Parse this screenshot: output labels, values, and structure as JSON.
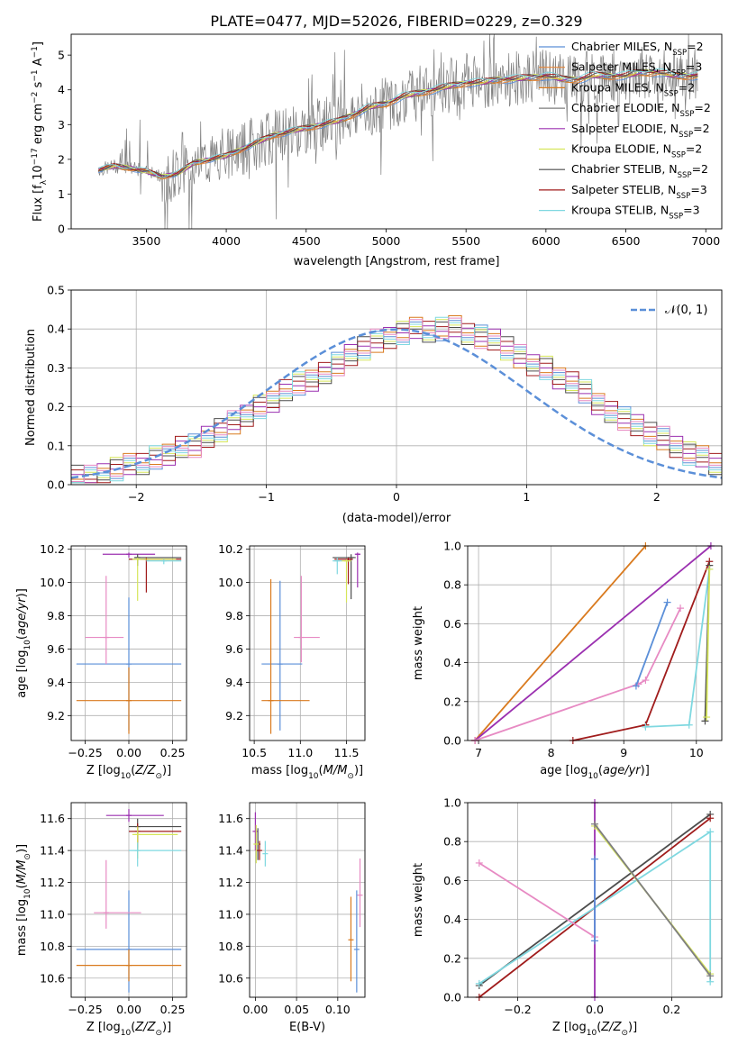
{
  "figure_title": "PLATE=0477, MJD=52026, FIBERID=0229, z=0.329",
  "colors": {
    "Chabrier MILES": "#5b8fd8",
    "Salpeter MILES": "#e8873a",
    "Kroupa MILES": "#d97a1e",
    "Chabrier ELODIE": "#7f7f7f",
    "Salpeter ELODIE": "#9b30b0",
    "Kroupa ELODIE": "#d6e65a",
    "Chabrier STELIB": "#4d4d4d",
    "Salpeter STELIB": "#a01c1c",
    "Kroupa STELIB": "#7fd8e0",
    "pink": "#e78ac3",
    "normal": "#5b8fd8"
  },
  "chart_data": [
    {
      "id": "spectrum",
      "type": "line",
      "title": "PLATE=0477, MJD=52026, FIBERID=0229, z=0.329",
      "xlabel": "wavelength [Angstrom, rest frame]",
      "ylabel": "Flux [f_λ 10^-17 erg cm^-2 s^-1 A^-1]",
      "xlim": [
        3030,
        7100
      ],
      "ylim": [
        0,
        5.6
      ],
      "xticks": [
        3500,
        4000,
        4500,
        5000,
        5500,
        6000,
        6500,
        7000
      ],
      "yticks": [
        0,
        1,
        2,
        3,
        4,
        5
      ],
      "grid": false,
      "legend": "upper right",
      "observed": {
        "x": [
          3200,
          3300,
          3400,
          3500,
          3600,
          3700,
          3800,
          3900,
          4000,
          4100,
          4200,
          4300,
          4400,
          4500,
          4600,
          4700,
          4800,
          4900,
          5000,
          5100,
          5200,
          5300,
          5400,
          5500,
          5600,
          5700,
          5800,
          5900,
          6000,
          6100,
          6200,
          6300,
          6400,
          6500,
          6600,
          6700,
          6800,
          6900
        ],
        "y": [
          1.7,
          1.8,
          1.75,
          1.65,
          1.5,
          1.6,
          1.9,
          2.0,
          2.1,
          2.3,
          2.5,
          2.7,
          2.8,
          2.9,
          3.0,
          3.1,
          3.3,
          3.5,
          3.6,
          3.8,
          3.9,
          4.0,
          4.1,
          4.2,
          4.2,
          4.3,
          4.3,
          4.35,
          4.4,
          4.3,
          4.3,
          4.4,
          4.4,
          4.4,
          4.5,
          4.5,
          4.4,
          4.4
        ]
      },
      "series": [
        {
          "name": "Chabrier MILES, N_SSP=2",
          "label": "Chabrier MILES, N",
          "sub": "SSP",
          "n": "=2"
        },
        {
          "name": "Salpeter MILES, N_SSP=3",
          "label": "Salpeter MILES, N",
          "sub": "SSP",
          "n": "=3"
        },
        {
          "name": "Kroupa MILES, N_SSP=2",
          "label": "Kroupa MILES, N",
          "sub": "SSP",
          "n": "=2"
        },
        {
          "name": "Chabrier ELODIE, N_SSP=2",
          "label": "Chabrier ELODIE, N",
          "sub": "SSP",
          "n": "=2"
        },
        {
          "name": "Salpeter ELODIE, N_SSP=2",
          "label": "Salpeter ELODIE, N",
          "sub": "SSP",
          "n": "=2"
        },
        {
          "name": "Kroupa ELODIE, N_SSP=2",
          "label": "Kroupa ELODIE, N",
          "sub": "SSP",
          "n": "=2"
        },
        {
          "name": "Chabrier STELIB, N_SSP=2",
          "label": "Chabrier STELIB, N",
          "sub": "SSP",
          "n": "=2"
        },
        {
          "name": "Salpeter STELIB, N_SSP=3",
          "label": "Salpeter STELIB, N",
          "sub": "SSP",
          "n": "=3"
        },
        {
          "name": "Kroupa STELIB, N_SSP=3",
          "label": "Kroupa STELIB, N",
          "sub": "SSP",
          "n": "=3"
        }
      ]
    },
    {
      "id": "residuals",
      "type": "histogram",
      "xlabel": "(data-model)/error",
      "ylabel": "Normed distribution",
      "xlim": [
        -2.5,
        2.5
      ],
      "ylim": [
        0,
        0.5
      ],
      "xticks": [
        -2,
        -1,
        0,
        1,
        2
      ],
      "yticks": [
        0,
        0.1,
        0.2,
        0.3,
        0.4,
        0.5
      ],
      "grid": true,
      "legend": "upper right",
      "legend_label": "𝒩(0, 1)",
      "bin_width": 0.1,
      "x_start": -2.5,
      "values": [
        0.02,
        0.02,
        0.03,
        0.04,
        0.05,
        0.05,
        0.07,
        0.08,
        0.1,
        0.1,
        0.12,
        0.14,
        0.16,
        0.18,
        0.2,
        0.21,
        0.24,
        0.26,
        0.27,
        0.29,
        0.31,
        0.33,
        0.35,
        0.37,
        0.38,
        0.39,
        0.4,
        0.39,
        0.4,
        0.41,
        0.39,
        0.38,
        0.37,
        0.35,
        0.33,
        0.31,
        0.3,
        0.27,
        0.26,
        0.24,
        0.21,
        0.19,
        0.17,
        0.15,
        0.13,
        0.12,
        0.1,
        0.08,
        0.07,
        0.05
      ]
    },
    {
      "id": "age-vs-Z",
      "type": "errorbar",
      "xlabel": "Z [log10(Z/Z⊙)]",
      "ylabel": "age [log10(age/yr)]",
      "xlim": [
        -0.33,
        0.33
      ],
      "ylim": [
        9.05,
        10.22
      ],
      "xticks": [
        -0.25,
        0,
        0.25
      ],
      "xticklabels": [
        "−0.25",
        "0.00",
        "0.25"
      ],
      "yticks": [
        9.2,
        9.4,
        9.6,
        9.8,
        10.0,
        10.2
      ],
      "grid": true,
      "points": [
        {
          "color": "Chabrier MILES",
          "x": 0.0,
          "y": 9.51,
          "xerr": [
            0.3,
            0.3
          ],
          "yerr": [
            0.4,
            0.4
          ]
        },
        {
          "color": "Kroupa MILES",
          "x": 0.0,
          "y": 9.29,
          "xerr": [
            0.3,
            0.3
          ],
          "yerr": [
            0.2,
            0.2
          ]
        },
        {
          "color": "pink",
          "x": -0.13,
          "y": 9.67,
          "xerr": [
            0.12,
            0.1
          ],
          "yerr": [
            0.16,
            0.37
          ]
        },
        {
          "color": "Salpeter ELODIE",
          "x": 0.0,
          "y": 10.17,
          "xerr": [
            0.15,
            0.15
          ],
          "yerr": [
            0.02,
            0.01
          ]
        },
        {
          "color": "Chabrier STELIB",
          "x": 0.05,
          "y": 10.15,
          "xerr": [
            0.02,
            0.25
          ],
          "yerr": [
            0.05,
            0.02
          ]
        },
        {
          "color": "Salpeter STELIB",
          "x": 0.1,
          "y": 10.14,
          "xerr": [
            0.1,
            0.2
          ],
          "yerr": [
            0.2,
            0.01
          ]
        },
        {
          "color": "Kroupa ELODIE",
          "x": 0.05,
          "y": 10.14,
          "xerr": [
            0.03,
            0.22
          ],
          "yerr": [
            0.25,
            0.01
          ]
        },
        {
          "color": "Kroupa STELIB",
          "x": 0.2,
          "y": 10.13,
          "xerr": [
            0.1,
            0.1
          ],
          "yerr": [
            0.02,
            0.01
          ]
        }
      ]
    },
    {
      "id": "age-vs-mass",
      "type": "errorbar",
      "xlabel": "mass [log10(M/M⊙)]",
      "xlim": [
        10.45,
        11.7
      ],
      "ylim": [
        9.05,
        10.22
      ],
      "xticks": [
        10.5,
        11.0,
        11.5
      ],
      "xticklabels": [
        "10.5",
        "11.0",
        "11.5"
      ],
      "yticks": [
        9.2,
        9.4,
        9.6,
        9.8,
        10.0,
        10.2
      ],
      "grid": true,
      "points": [
        {
          "color": "Chabrier MILES",
          "x": 10.78,
          "y": 9.51,
          "xerr": [
            0.2,
            0.24
          ],
          "yerr": [
            0.4,
            0.5
          ]
        },
        {
          "color": "Kroupa MILES",
          "x": 10.68,
          "y": 9.29,
          "xerr": [
            0.1,
            0.42
          ],
          "yerr": [
            0.2,
            0.73
          ]
        },
        {
          "color": "pink",
          "x": 11.01,
          "y": 9.67,
          "xerr": [
            0.08,
            0.2
          ],
          "yerr": [
            0.15,
            0.37
          ]
        },
        {
          "color": "Salpeter ELODIE",
          "x": 11.62,
          "y": 10.17,
          "xerr": [
            0.02,
            0.03
          ],
          "yerr": [
            0.2,
            0.01
          ]
        },
        {
          "color": "Chabrier STELIB",
          "x": 11.55,
          "y": 10.15,
          "xerr": [
            0.2,
            0.05
          ],
          "yerr": [
            0.25,
            0.02
          ]
        },
        {
          "color": "Salpeter STELIB",
          "x": 11.52,
          "y": 10.14,
          "xerr": [
            0.15,
            0.05
          ],
          "yerr": [
            0.15,
            0.01
          ]
        },
        {
          "color": "Kroupa ELODIE",
          "x": 11.5,
          "y": 10.13,
          "xerr": [
            0.06,
            0.05
          ],
          "yerr": [
            0.25,
            0.01
          ]
        },
        {
          "color": "Kroupa STELIB",
          "x": 11.4,
          "y": 10.13,
          "xerr": [
            0.05,
            0.05
          ],
          "yerr": [
            0.08,
            0.02
          ]
        }
      ]
    },
    {
      "id": "weight-vs-age",
      "type": "line",
      "xlabel": "age [log10(age/yr)]",
      "ylabel": "mass weight",
      "xlim": [
        6.85,
        10.35
      ],
      "ylim": [
        0,
        1
      ],
      "xticks": [
        7,
        8,
        9,
        10
      ],
      "yticks": [
        0,
        0.2,
        0.4,
        0.6,
        0.8,
        1.0
      ],
      "grid": true,
      "series": [
        {
          "color": "Kroupa MILES",
          "x": [
            6.95,
            9.3
          ],
          "y": [
            0.0,
            1.0
          ]
        },
        {
          "color": "Salpeter ELODIE",
          "x": [
            6.95,
            10.2
          ],
          "y": [
            0.0,
            1.0
          ]
        },
        {
          "color": "pink",
          "x": [
            6.95,
            9.2,
            9.3,
            9.78
          ],
          "y": [
            0.0,
            0.29,
            0.31,
            0.68
          ]
        },
        {
          "color": "Chabrier MILES",
          "x": [
            9.17,
            9.6
          ],
          "y": [
            0.28,
            0.71
          ]
        },
        {
          "color": "Salpeter STELIB",
          "x": [
            8.3,
            9.3,
            10.18
          ],
          "y": [
            0.0,
            0.08,
            0.92
          ]
        },
        {
          "color": "Kroupa STELIB",
          "x": [
            9.3,
            9.9,
            10.18
          ],
          "y": [
            0.07,
            0.08,
            0.88
          ]
        },
        {
          "color": "Chabrier STELIB",
          "x": [
            10.12,
            10.18
          ],
          "y": [
            0.1,
            0.9
          ]
        },
        {
          "color": "Kroupa ELODIE",
          "x": [
            10.14,
            10.18
          ],
          "y": [
            0.12,
            0.88
          ]
        }
      ]
    },
    {
      "id": "mass-vs-Z",
      "type": "errorbar",
      "xlabel": "Z [log10(Z/Z⊙)]",
      "ylabel": "mass [log10(M/M⊙)]",
      "xlim": [
        -0.33,
        0.33
      ],
      "ylim": [
        10.48,
        11.7
      ],
      "xticks": [
        -0.25,
        0,
        0.25
      ],
      "xticklabels": [
        "−0.25",
        "0.00",
        "0.25"
      ],
      "yticks": [
        10.6,
        10.8,
        11.0,
        11.2,
        11.4,
        11.6
      ],
      "grid": true,
      "points": [
        {
          "color": "Chabrier MILES",
          "x": 0.0,
          "y": 10.78,
          "xerr": [
            0.3,
            0.3
          ],
          "yerr": [
            0.27,
            0.37
          ]
        },
        {
          "color": "Kroupa MILES",
          "x": 0.0,
          "y": 10.68,
          "xerr": [
            0.3,
            0.3
          ],
          "yerr": [
            0.1,
            0.1
          ]
        },
        {
          "color": "pink",
          "x": -0.13,
          "y": 11.01,
          "xerr": [
            0.07,
            0.2
          ],
          "yerr": [
            0.1,
            0.33
          ]
        },
        {
          "color": "Salpeter ELODIE",
          "x": 0.0,
          "y": 11.62,
          "xerr": [
            0.13,
            0.2
          ],
          "yerr": [
            0.04,
            0.04
          ]
        },
        {
          "color": "Chabrier STELIB",
          "x": 0.05,
          "y": 11.55,
          "xerr": [
            0.05,
            0.25
          ],
          "yerr": [
            0.15,
            0.05
          ]
        },
        {
          "color": "Salpeter STELIB",
          "x": 0.05,
          "y": 11.52,
          "xerr": [
            0.05,
            0.25
          ],
          "yerr": [
            0.1,
            0.05
          ]
        },
        {
          "color": "Kroupa ELODIE",
          "x": 0.05,
          "y": 11.5,
          "xerr": [
            0.03,
            0.23
          ],
          "yerr": [
            0.15,
            0.05
          ]
        },
        {
          "color": "Kroupa STELIB",
          "x": 0.05,
          "y": 11.4,
          "xerr": [
            0.05,
            0.25
          ],
          "yerr": [
            0.1,
            0.05
          ]
        }
      ]
    },
    {
      "id": "mass-vs-ebv",
      "type": "errorbar",
      "xlabel": "E(B-V)",
      "xlim": [
        -0.007,
        0.133
      ],
      "ylim": [
        10.48,
        11.7
      ],
      "xticks": [
        0,
        0.05,
        0.1
      ],
      "xticklabels": [
        "0.00",
        "0.05",
        "0.10"
      ],
      "yticks": [
        10.6,
        10.8,
        11.0,
        11.2,
        11.4,
        11.6
      ],
      "grid": true,
      "points": [
        {
          "color": "Chabrier MILES",
          "x": 0.123,
          "y": 10.78,
          "xerr": [
            0,
            0
          ],
          "yerr": [
            0.27,
            0.37
          ]
        },
        {
          "color": "Kroupa MILES",
          "x": 0.116,
          "y": 10.84,
          "xerr": [
            0,
            0
          ],
          "yerr": [
            0.26,
            0.27
          ]
        },
        {
          "color": "pink",
          "x": 0.127,
          "y": 11.12,
          "xerr": [
            0,
            0
          ],
          "yerr": [
            0.2,
            0.23
          ]
        },
        {
          "color": "Salpeter ELODIE",
          "x": 0.0,
          "y": 11.52,
          "xerr": [
            0,
            0
          ],
          "yerr": [
            0.12,
            0.12
          ]
        },
        {
          "color": "Chabrier STELIB",
          "x": 0.003,
          "y": 11.44,
          "xerr": [
            0,
            0
          ],
          "yerr": [
            0.1,
            0.1
          ]
        },
        {
          "color": "Kroupa ELODIE",
          "x": 0.001,
          "y": 11.44,
          "xerr": [
            0,
            0
          ],
          "yerr": [
            0.12,
            0.12
          ]
        },
        {
          "color": "Salpeter STELIB",
          "x": 0.005,
          "y": 11.4,
          "xerr": [
            0,
            0
          ],
          "yerr": [
            0.06,
            0.06
          ]
        },
        {
          "color": "Kroupa STELIB",
          "x": 0.012,
          "y": 11.38,
          "xerr": [
            0,
            0
          ],
          "yerr": [
            0.08,
            0.08
          ]
        }
      ]
    },
    {
      "id": "weight-vs-Z",
      "type": "line",
      "xlabel": "Z [log10(Z/Z⊙)]",
      "ylabel": "mass weight",
      "xlim": [
        -0.33,
        0.33
      ],
      "ylim": [
        0,
        1
      ],
      "xticks": [
        -0.2,
        0,
        0.2
      ],
      "xticklabels": [
        "−0.2",
        "0.0",
        "0.2"
      ],
      "yticks": [
        0,
        0.2,
        0.4,
        0.6,
        0.8,
        1.0
      ],
      "grid": true,
      "series": [
        {
          "color": "Chabrier STELIB",
          "x": [
            -0.3,
            0.3
          ],
          "y": [
            0.06,
            0.94
          ]
        },
        {
          "color": "Salpeter STELIB",
          "x": [
            -0.3,
            0.3
          ],
          "y": [
            0.0,
            0.92
          ]
        },
        {
          "color": "Kroupa STELIB",
          "x": [
            -0.3,
            0.3,
            0.3
          ],
          "y": [
            0.07,
            0.85,
            0.08
          ]
        },
        {
          "color": "pink",
          "x": [
            -0.3,
            0.0
          ],
          "y": [
            0.69,
            0.31
          ]
        },
        {
          "color": "Salpeter ELODIE",
          "x": [
            0.0,
            0.0
          ],
          "y": [
            0.0,
            1.0
          ]
        },
        {
          "color": "Chabrier MILES",
          "x": [
            0.0,
            0.0
          ],
          "y": [
            0.29,
            0.71
          ]
        },
        {
          "color": "Kroupa ELODIE",
          "x": [
            0.0,
            0.3
          ],
          "y": [
            0.88,
            0.12
          ]
        },
        {
          "color": "Chabrier ELODIE",
          "x": [
            0.0,
            0.3
          ],
          "y": [
            0.89,
            0.11
          ]
        }
      ]
    }
  ]
}
